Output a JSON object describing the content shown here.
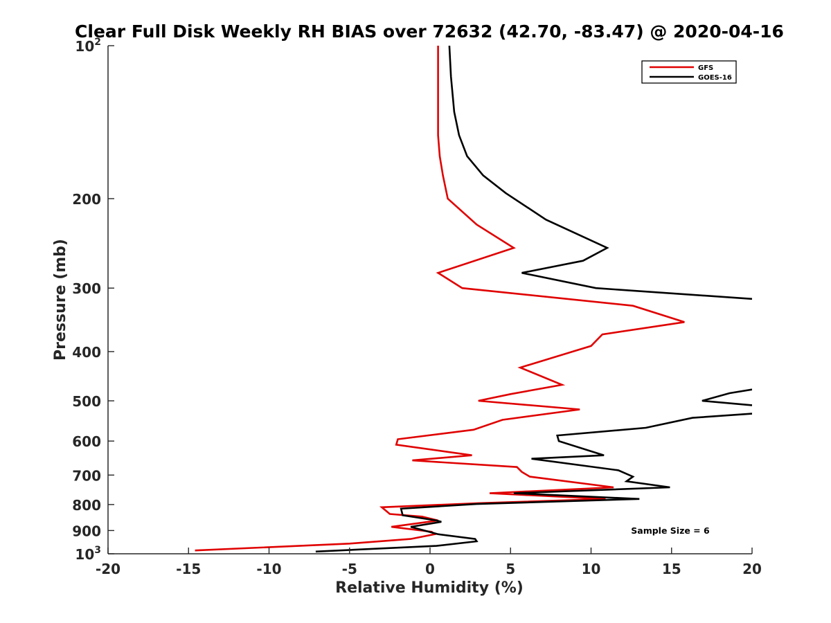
{
  "chart_data": {
    "type": "line",
    "title": "Clear Full Disk Weekly RH BIAS over 72632 (42.70, -83.47) @ 2020-04-16",
    "xlabel": "Relative Humidity (%)",
    "ylabel": "Pressure (mb)",
    "xlim": [
      -20,
      20
    ],
    "ylim": [
      100,
      1000
    ],
    "yscale": "log",
    "y_reversed": true,
    "grid": false,
    "legend_position": "top-right",
    "x_ticks": [
      "-20",
      "-15",
      "-10",
      "-5",
      "0",
      "5",
      "10",
      "15",
      "20"
    ],
    "y_ticks": [
      {
        "value": 100,
        "base": "10",
        "exp": "2"
      },
      {
        "value": 200,
        "label": "200"
      },
      {
        "value": 300,
        "label": "300"
      },
      {
        "value": 400,
        "label": "400"
      },
      {
        "value": 500,
        "label": "500"
      },
      {
        "value": 600,
        "label": "600"
      },
      {
        "value": 700,
        "label": "700"
      },
      {
        "value": 800,
        "label": "800"
      },
      {
        "value": 900,
        "label": "900"
      },
      {
        "value": 1000,
        "base": "10",
        "exp": "3"
      }
    ],
    "annotation": "Sample Size = 6",
    "series": [
      {
        "name": "GFS",
        "color": "#e00000",
        "points": [
          [
            0.5,
            100
          ],
          [
            0.5,
            125
          ],
          [
            0.5,
            150
          ],
          [
            0.6,
            165
          ],
          [
            0.8,
            180
          ],
          [
            1.1,
            200
          ],
          [
            2.9,
            225
          ],
          [
            5.2,
            250
          ],
          [
            0.5,
            280
          ],
          [
            2.0,
            300
          ],
          [
            12.6,
            325
          ],
          [
            15.8,
            350
          ],
          [
            10.7,
            370
          ],
          [
            10.0,
            390
          ],
          [
            5.6,
            430
          ],
          [
            8.2,
            465
          ],
          [
            5.0,
            485
          ],
          [
            3.0,
            500
          ],
          [
            9.3,
            520
          ],
          [
            4.5,
            545
          ],
          [
            2.7,
            570
          ],
          [
            -2.0,
            595
          ],
          [
            -2.1,
            610
          ],
          [
            2.6,
            640
          ],
          [
            -1.1,
            655
          ],
          [
            5.4,
            675
          ],
          [
            5.7,
            690
          ],
          [
            6.2,
            705
          ],
          [
            11.4,
            740
          ],
          [
            3.7,
            760
          ],
          [
            10.9,
            780
          ],
          [
            3.0,
            795
          ],
          [
            -3.0,
            810
          ],
          [
            -2.5,
            835
          ],
          [
            -0.5,
            845
          ],
          [
            0.5,
            860
          ],
          [
            -2.4,
            885
          ],
          [
            0.1,
            905
          ],
          [
            0.3,
            915
          ],
          [
            -1.2,
            935
          ],
          [
            -5.0,
            955
          ],
          [
            -14.6,
            985
          ]
        ]
      },
      {
        "name": "GOES-16",
        "color": "#000000",
        "points": [
          [
            1.2,
            100
          ],
          [
            1.3,
            115
          ],
          [
            1.5,
            135
          ],
          [
            1.8,
            150
          ],
          [
            2.3,
            165
          ],
          [
            3.3,
            180
          ],
          [
            4.7,
            195
          ],
          [
            7.2,
            220
          ],
          [
            11.0,
            250
          ],
          [
            9.5,
            265
          ],
          [
            5.7,
            280
          ],
          [
            10.3,
            300
          ],
          [
            20.0,
            315
          ],
          [
            null,
            null
          ],
          [
            20.0,
            475
          ],
          [
            18.6,
            483
          ],
          [
            16.9,
            500
          ],
          [
            20.0,
            510
          ],
          [
            null,
            null
          ],
          [
            20.0,
            530
          ],
          [
            16.3,
            540
          ],
          [
            13.4,
            565
          ],
          [
            7.9,
            585
          ],
          [
            8.0,
            600
          ],
          [
            10.8,
            640
          ],
          [
            6.3,
            650
          ],
          [
            11.7,
            685
          ],
          [
            12.6,
            705
          ],
          [
            12.2,
            720
          ],
          [
            14.9,
            740
          ],
          [
            5.2,
            760
          ],
          [
            13.0,
            780
          ],
          [
            2.9,
            798
          ],
          [
            -1.8,
            815
          ],
          [
            -1.7,
            840
          ],
          [
            0.4,
            860
          ],
          [
            0.7,
            865
          ],
          [
            -1.2,
            885
          ],
          [
            0.5,
            915
          ],
          [
            2.8,
            935
          ],
          [
            2.9,
            945
          ],
          [
            0.4,
            965
          ],
          [
            -7.1,
            990
          ]
        ]
      }
    ]
  }
}
